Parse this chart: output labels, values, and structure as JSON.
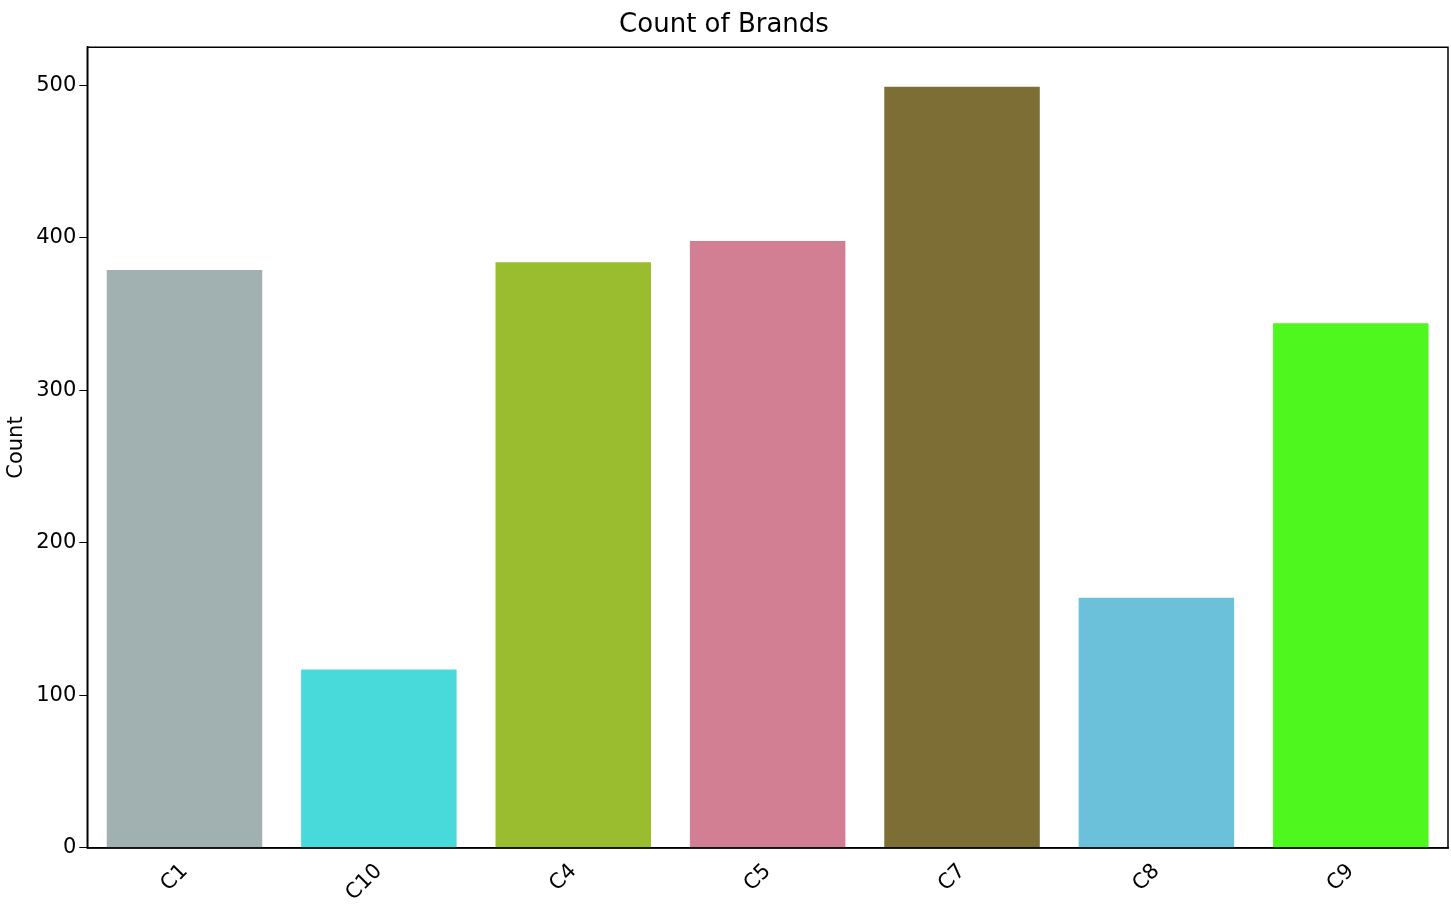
{
  "chart_data": {
    "type": "bar",
    "title": "Count of Brands",
    "ylabel": "Count",
    "categories": [
      "C1",
      "C10",
      "C4",
      "C5",
      "C7",
      "C8",
      "C9"
    ],
    "values": [
      379,
      117,
      384,
      398,
      499,
      164,
      344
    ],
    "colors": [
      "#a1b1b1",
      "#48d9da",
      "#9abd30",
      "#d27f94",
      "#7c6e35",
      "#6cc1da",
      "#4ef81e"
    ],
    "ylim": [
      0,
      525
    ],
    "yticks": [
      0,
      100,
      200,
      300,
      400,
      500
    ],
    "grid": false,
    "legend": false
  }
}
